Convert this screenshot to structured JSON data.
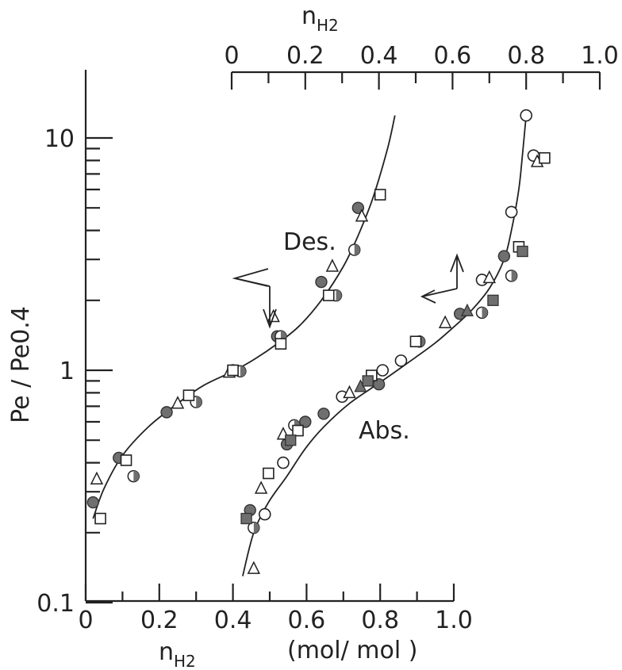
{
  "chart_data": {
    "type": "scatter",
    "title": "",
    "y_axis": {
      "label": "Pe / Pe0.4",
      "scale": "log",
      "range": [
        0.1,
        15
      ],
      "tick_labels": [
        "0.1",
        "1",
        "10"
      ]
    },
    "x_axis_bottom": {
      "label_main": "n",
      "label_sub": "H2",
      "units": "(mol/ mol )",
      "range": [
        0,
        1.0
      ],
      "tick_labels": [
        "0",
        "0.2",
        "0.4",
        "0.6",
        "0.8",
        "1.0"
      ],
      "ticks": [
        0,
        0.2,
        0.4,
        0.6,
        0.8,
        1.0
      ]
    },
    "x_axis_top": {
      "label_main": "n",
      "label_sub": "H2",
      "range": [
        0,
        1.0
      ],
      "tick_labels": [
        "0",
        "0.2",
        "0.4",
        "0.6",
        "0.8",
        "1.0"
      ],
      "ticks": [
        0,
        0.2,
        0.4,
        0.6,
        0.8,
        1.0
      ]
    },
    "annotations": {
      "desorption": "Des.",
      "absorption": "Abs."
    },
    "desorption_curve": [
      [
        0.02,
        0.23
      ],
      [
        0.05,
        0.31
      ],
      [
        0.1,
        0.43
      ],
      [
        0.17,
        0.57
      ],
      [
        0.25,
        0.72
      ],
      [
        0.32,
        0.86
      ],
      [
        0.4,
        0.99
      ],
      [
        0.46,
        1.12
      ],
      [
        0.52,
        1.3
      ],
      [
        0.58,
        1.55
      ],
      [
        0.64,
        2.0
      ],
      [
        0.7,
        2.8
      ],
      [
        0.74,
        3.8
      ],
      [
        0.78,
        5.5
      ],
      [
        0.82,
        9.0
      ],
      [
        0.84,
        12.5
      ]
    ],
    "absorption_curve": [
      [
        0.03,
        0.13
      ],
      [
        0.06,
        0.2
      ],
      [
        0.1,
        0.27
      ],
      [
        0.15,
        0.35
      ],
      [
        0.2,
        0.46
      ],
      [
        0.25,
        0.57
      ],
      [
        0.32,
        0.72
      ],
      [
        0.4,
        0.88
      ],
      [
        0.48,
        1.08
      ],
      [
        0.55,
        1.3
      ],
      [
        0.6,
        1.52
      ],
      [
        0.65,
        1.8
      ],
      [
        0.7,
        2.25
      ],
      [
        0.74,
        3.0
      ],
      [
        0.76,
        4.0
      ],
      [
        0.78,
        6.0
      ],
      [
        0.79,
        8.5
      ],
      [
        0.8,
        12.5
      ]
    ],
    "series": [
      {
        "marker": "filled-circle",
        "group": "desorption",
        "points": [
          [
            0.02,
            0.27
          ],
          [
            0.09,
            0.42
          ],
          [
            0.22,
            0.66
          ],
          [
            0.4,
            1.0
          ],
          [
            0.52,
            1.4
          ],
          [
            0.64,
            2.4
          ],
          [
            0.74,
            5.0
          ]
        ]
      },
      {
        "marker": "half-circle",
        "group": "desorption",
        "points": [
          [
            0.13,
            0.35
          ],
          [
            0.3,
            0.73
          ],
          [
            0.42,
            0.99
          ],
          [
            0.53,
            1.4
          ],
          [
            0.68,
            2.1
          ],
          [
            0.73,
            3.3
          ]
        ]
      },
      {
        "marker": "open-triangle",
        "group": "desorption",
        "points": [
          [
            0.03,
            0.34
          ],
          [
            0.25,
            0.72
          ],
          [
            0.39,
            0.98
          ],
          [
            0.51,
            1.7
          ],
          [
            0.67,
            2.8
          ],
          [
            0.75,
            4.6
          ]
        ]
      },
      {
        "marker": "open-square",
        "group": "desorption",
        "points": [
          [
            0.04,
            0.23
          ],
          [
            0.11,
            0.41
          ],
          [
            0.28,
            0.78
          ],
          [
            0.4,
            1.0
          ],
          [
            0.53,
            1.3
          ],
          [
            0.66,
            2.1
          ],
          [
            0.8,
            5.7
          ]
        ]
      },
      {
        "marker": "filled-circle",
        "group": "absorption",
        "points": [
          [
            0.05,
            0.25
          ],
          [
            0.15,
            0.48
          ],
          [
            0.2,
            0.6
          ],
          [
            0.25,
            0.65
          ],
          [
            0.4,
            0.87
          ],
          [
            0.62,
            1.75
          ],
          [
            0.74,
            3.1
          ]
        ]
      },
      {
        "marker": "half-circle",
        "group": "absorption",
        "points": [
          [
            0.06,
            0.21
          ],
          [
            0.17,
            0.58
          ],
          [
            0.51,
            1.33
          ],
          [
            0.68,
            1.77
          ],
          [
            0.76,
            2.55
          ]
        ]
      },
      {
        "marker": "open-circle",
        "group": "absorption",
        "points": [
          [
            0.09,
            0.24
          ],
          [
            0.14,
            0.4
          ],
          [
            0.3,
            0.77
          ],
          [
            0.41,
            1.0
          ],
          [
            0.46,
            1.1
          ],
          [
            0.68,
            2.45
          ],
          [
            0.76,
            4.8
          ],
          [
            0.8,
            12.5
          ],
          [
            0.82,
            8.4
          ]
        ]
      },
      {
        "marker": "open-triangle",
        "group": "absorption",
        "points": [
          [
            0.06,
            0.14
          ],
          [
            0.08,
            0.31
          ],
          [
            0.14,
            0.53
          ],
          [
            0.32,
            0.8
          ],
          [
            0.58,
            1.6
          ],
          [
            0.7,
            2.5
          ],
          [
            0.83,
            7.9
          ]
        ]
      },
      {
        "marker": "filled-triangle",
        "group": "absorption",
        "points": [
          [
            0.35,
            0.85
          ],
          [
            0.64,
            1.8
          ]
        ]
      },
      {
        "marker": "open-square",
        "group": "absorption",
        "points": [
          [
            0.1,
            0.36
          ],
          [
            0.18,
            0.55
          ],
          [
            0.38,
            0.95
          ],
          [
            0.5,
            1.33
          ],
          [
            0.78,
            3.4
          ],
          [
            0.85,
            8.2
          ]
        ]
      },
      {
        "marker": "filled-square",
        "group": "absorption",
        "points": [
          [
            0.04,
            0.23
          ],
          [
            0.16,
            0.5
          ],
          [
            0.37,
            0.9
          ],
          [
            0.71,
            2.0
          ],
          [
            0.79,
            3.25
          ]
        ]
      }
    ]
  }
}
